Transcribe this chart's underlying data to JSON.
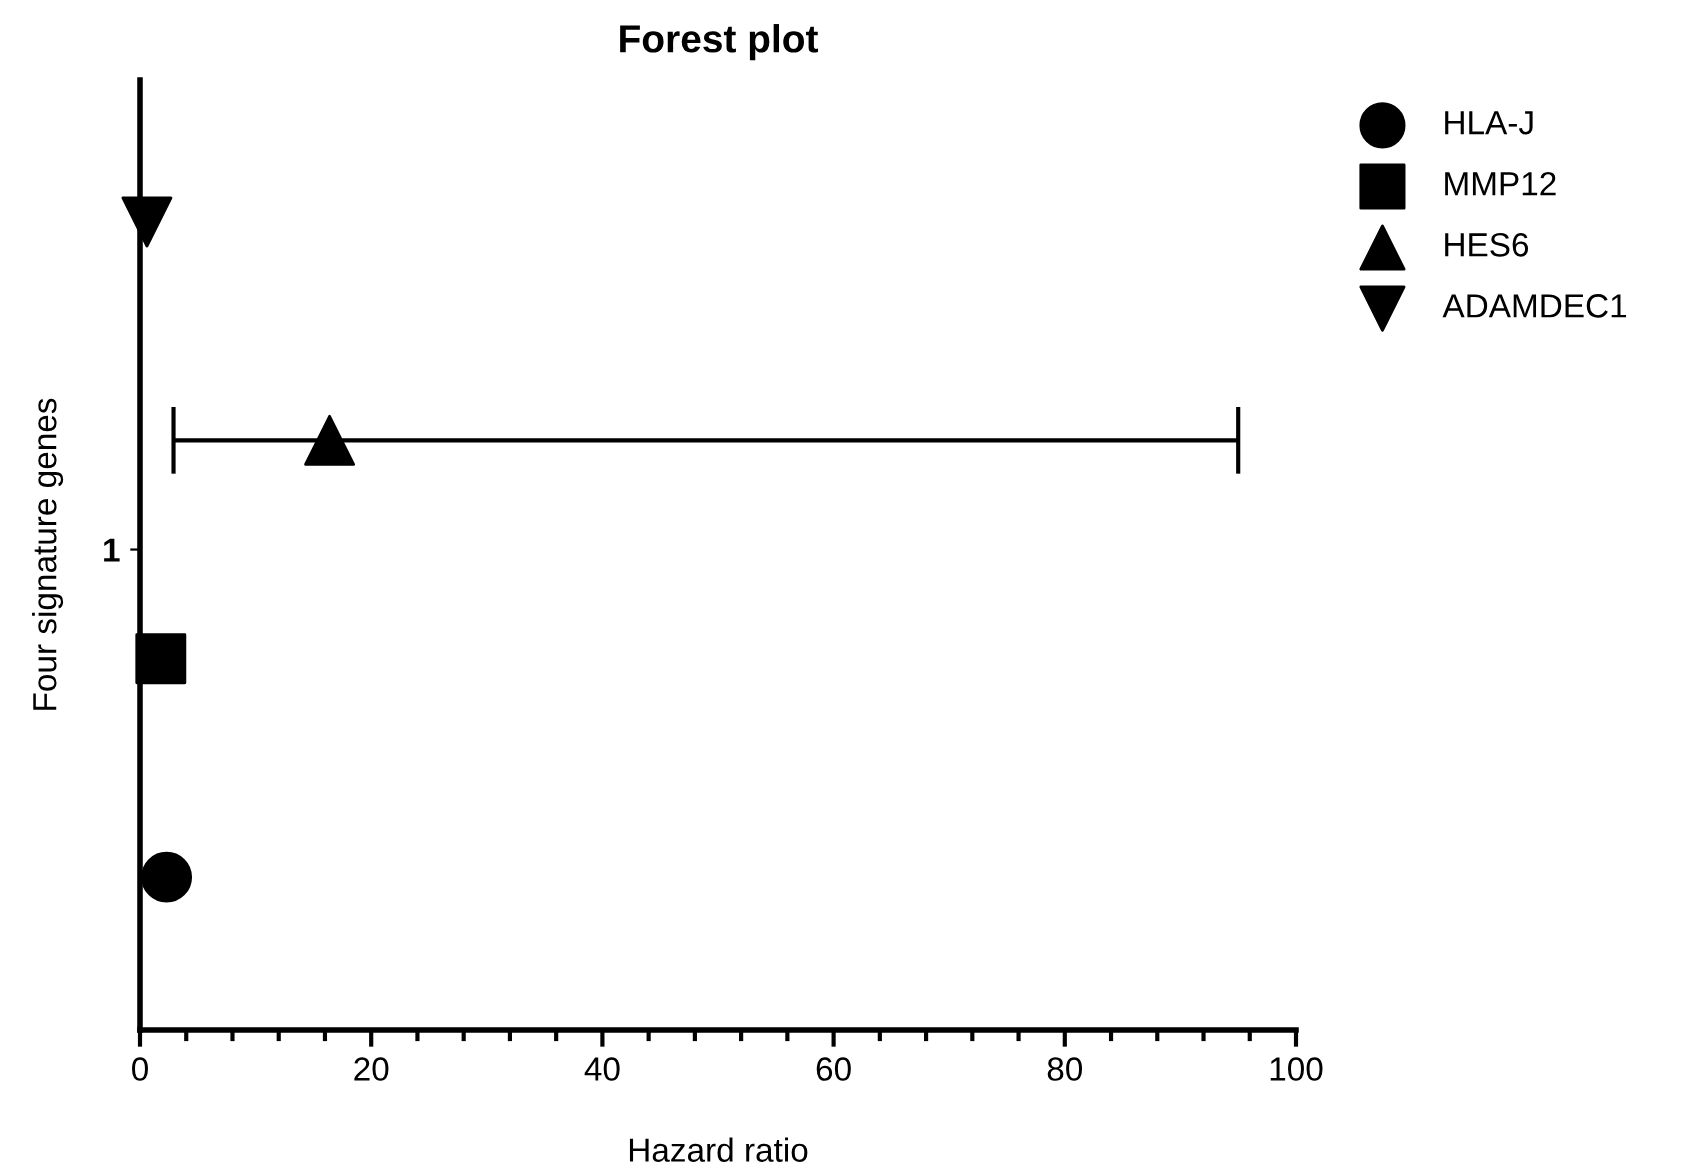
{
  "chart_data": {
    "type": "scatter",
    "orientation": "horizontal",
    "title": "Forest plot",
    "xlabel": "Hazard ratio",
    "ylabel": "Four signature genes",
    "categories": [
      null,
      null,
      null,
      null
    ],
    "series": [
      {
        "name": "HLA-J",
        "color": "#000000",
        "marker": "circle",
        "values": [
          null,
          null,
          null,
          2.3
        ]
      },
      {
        "name": "MMP12",
        "color": "#000000",
        "marker": "square",
        "values": [
          null,
          null,
          1.8,
          null
        ]
      },
      {
        "name": "HES6",
        "color": "#000000",
        "marker": "triangle",
        "values": [
          null,
          16.4,
          null,
          null
        ],
        "errors": [
          null,
          [
            2.9,
            95
          ],
          null,
          null
        ]
      },
      {
        "name": "ADAMDEC1",
        "color": "#000000",
        "marker": "triangle_down",
        "values": [
          0.6,
          null,
          null,
          null
        ]
      }
    ],
    "annotations": [
      "1"
    ],
    "xlim": [
      0,
      100
    ],
    "xticks": [
      0,
      20,
      40,
      60,
      80,
      100
    ],
    "grid": false,
    "legend": "top right"
  }
}
